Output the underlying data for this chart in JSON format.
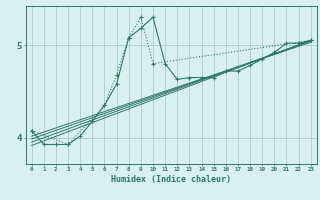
{
  "xlabel": "Humidex (Indice chaleur)",
  "bg_color": "#daf0ee",
  "line_color": "#2d7a6a",
  "grid_color": "#aacfcc",
  "xlim": [
    -0.5,
    23.5
  ],
  "ylim": [
    3.72,
    5.42
  ],
  "yticks": [
    4,
    5
  ],
  "xticks": [
    0,
    1,
    2,
    3,
    4,
    5,
    6,
    7,
    8,
    9,
    10,
    11,
    12,
    13,
    14,
    15,
    16,
    17,
    18,
    19,
    20,
    21,
    22,
    23
  ],
  "line1_x": [
    0,
    1,
    2,
    3,
    4,
    5,
    6,
    7,
    8,
    9,
    10,
    11,
    12,
    13,
    14,
    15,
    16,
    17,
    18,
    19,
    20,
    21,
    22,
    23
  ],
  "line1_y": [
    4.08,
    3.93,
    3.93,
    3.93,
    4.02,
    4.18,
    4.35,
    4.58,
    5.08,
    5.18,
    5.3,
    4.8,
    4.63,
    4.65,
    4.65,
    4.65,
    4.72,
    4.72,
    4.78,
    4.85,
    4.92,
    5.02,
    5.02,
    5.05
  ],
  "line2_x": [
    0,
    3,
    6,
    7,
    8,
    9,
    10,
    23
  ],
  "line2_y": [
    4.08,
    3.93,
    4.35,
    4.68,
    5.08,
    5.3,
    4.8,
    5.05
  ],
  "regression_lines": [
    {
      "x0": 0,
      "y0": 3.92,
      "x1": 23,
      "y1": 5.05
    },
    {
      "x0": 0,
      "y0": 3.955,
      "x1": 23,
      "y1": 5.05
    },
    {
      "x0": 0,
      "y0": 3.99,
      "x1": 23,
      "y1": 5.04
    },
    {
      "x0": 0,
      "y0": 4.02,
      "x1": 23,
      "y1": 5.03
    }
  ]
}
